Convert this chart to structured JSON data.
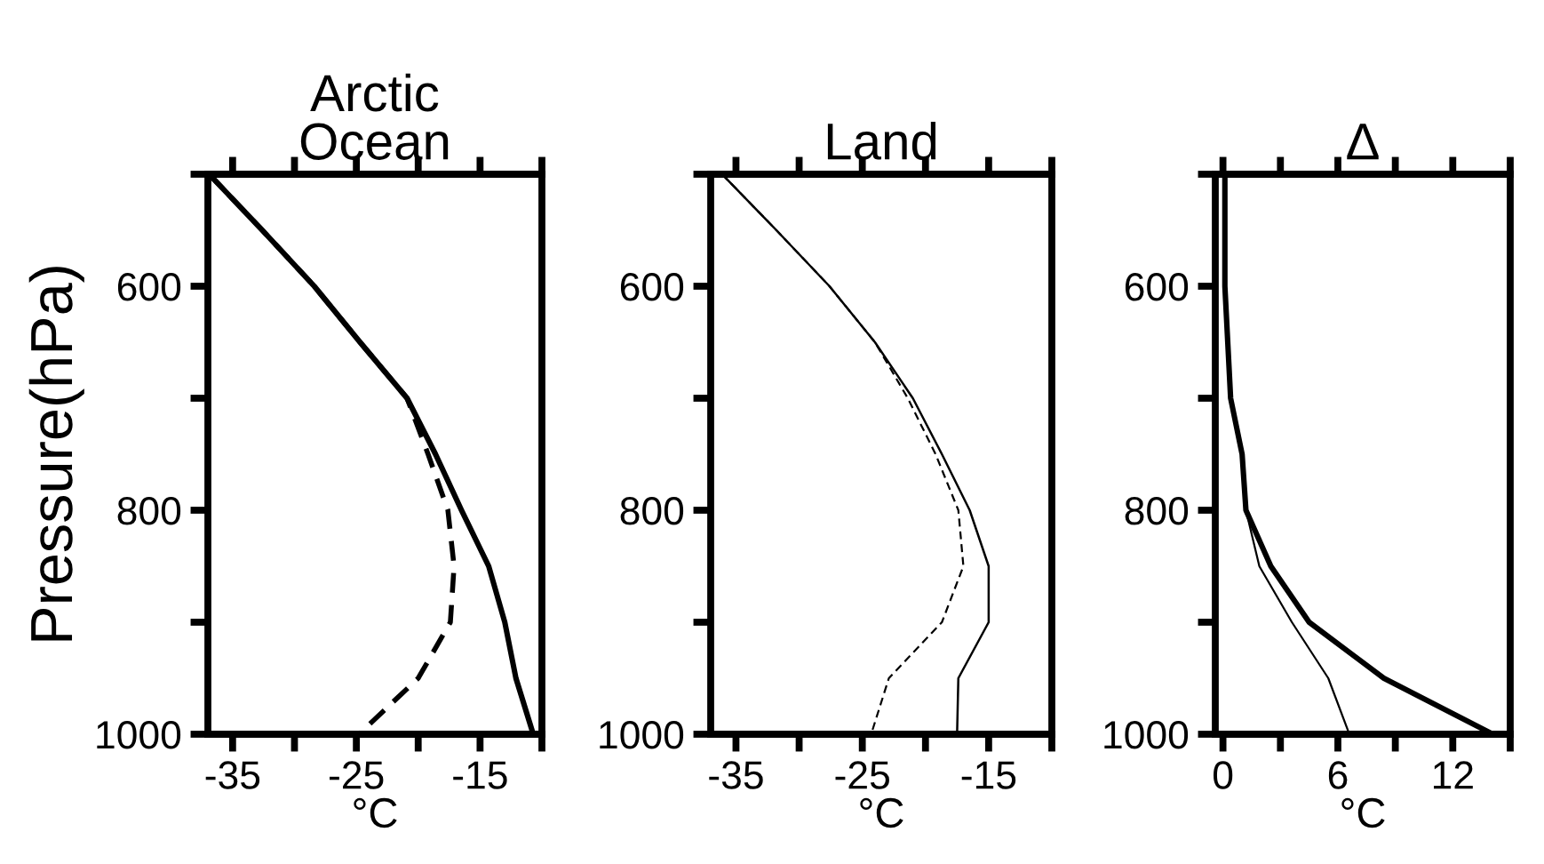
{
  "chart_data": [
    {
      "type": "line",
      "title": "Arctic\nOcean",
      "xlabel": "°C",
      "ylabel": "Pressure(hPa)",
      "xlim": [
        -37,
        -10
      ],
      "ylim": [
        1000,
        500
      ],
      "xticks": [
        -35,
        {
          "value": -30,
          "label": null
        },
        -25,
        {
          "value": -20,
          "label": null
        },
        -15,
        {
          "value": -10,
          "label": null
        }
      ],
      "yticks": [
        {
          "value": 500,
          "label": null
        },
        600,
        {
          "value": 700,
          "label": null
        },
        800,
        {
          "value": 900,
          "label": null
        },
        1000
      ],
      "grid": false,
      "legend": false,
      "series": [
        {
          "color": "#000000",
          "line_style": "solid",
          "x": [
            -36.9,
            -32.6,
            -28.4,
            -24.7,
            -20.9,
            -18.6,
            -16.5,
            -14.3,
            -13.0,
            -12.1,
            -10.7
          ],
          "values": [
            500,
            550,
            600,
            650,
            700,
            750,
            800,
            850,
            900,
            950,
            1000
          ]
        },
        {
          "color": "#000000",
          "line_style": "dashed",
          "x": [
            -36.9,
            -32.6,
            -28.4,
            -24.7,
            -20.9,
            -19.2,
            -17.6,
            -17.1,
            -17.4,
            -20.0,
            -24.8
          ],
          "values": [
            500,
            550,
            600,
            650,
            700,
            750,
            800,
            850,
            900,
            950,
            1000
          ]
        }
      ]
    },
    {
      "type": "line",
      "title": "Land",
      "xlabel": "°C",
      "xlim": [
        -37,
        -10
      ],
      "ylim": [
        1000,
        500
      ],
      "xticks": [
        -35,
        {
          "value": -30,
          "label": null
        },
        -25,
        {
          "value": -20,
          "label": null
        },
        -15,
        {
          "value": -10,
          "label": null
        }
      ],
      "yticks": [
        {
          "value": 500,
          "label": null
        },
        600,
        {
          "value": 700,
          "label": null
        },
        800,
        {
          "value": 900,
          "label": null
        },
        1000
      ],
      "grid": false,
      "legend": false,
      "series": [
        {
          "color": "#000000",
          "line_style": "solid",
          "x": [
            -36.1,
            -31.8,
            -27.6,
            -24.0,
            -21.0,
            -18.7,
            -16.5,
            -15.0,
            -15.0,
            -17.4,
            -17.5
          ],
          "values": [
            500,
            550,
            600,
            650,
            700,
            750,
            800,
            850,
            900,
            950,
            1000
          ]
        },
        {
          "color": "#000000",
          "line_style": "dashed",
          "x": [
            -36.1,
            -31.8,
            -27.6,
            -24.0,
            -21.4,
            -19.2,
            -17.4,
            -17.0,
            -18.7,
            -22.9,
            -24.3
          ],
          "values": [
            500,
            550,
            600,
            650,
            700,
            750,
            800,
            850,
            900,
            950,
            1000
          ]
        }
      ]
    },
    {
      "type": "line",
      "title": "Δ",
      "xlabel": "°C",
      "xlim": [
        -0.4,
        15
      ],
      "ylim": [
        1000,
        500
      ],
      "xticks": [
        0,
        {
          "value": 3,
          "label": null
        },
        6,
        {
          "value": 9,
          "label": null
        },
        12,
        {
          "value": 15,
          "label": null
        }
      ],
      "yticks": [
        {
          "value": 500,
          "label": null
        },
        600,
        {
          "value": 700,
          "label": null
        },
        800,
        {
          "value": 900,
          "label": null
        },
        1000
      ],
      "grid": false,
      "legend": false,
      "series": [
        {
          "color": "#000000",
          "line_style": "solid",
          "x": [
            0.1,
            0.1,
            0.4,
            1.0,
            1.2,
            2.5,
            4.5,
            8.4,
            14.1
          ],
          "values": [
            500,
            600,
            700,
            750,
            800,
            850,
            900,
            950,
            1000
          ]
        },
        {
          "color": "#000000",
          "line_style": "solid",
          "x": [
            0.1,
            0.1,
            0.4,
            1.0,
            1.2,
            1.9,
            3.6,
            5.5,
            6.6
          ],
          "values": [
            500,
            600,
            700,
            750,
            800,
            850,
            900,
            950,
            1000
          ]
        }
      ]
    }
  ]
}
